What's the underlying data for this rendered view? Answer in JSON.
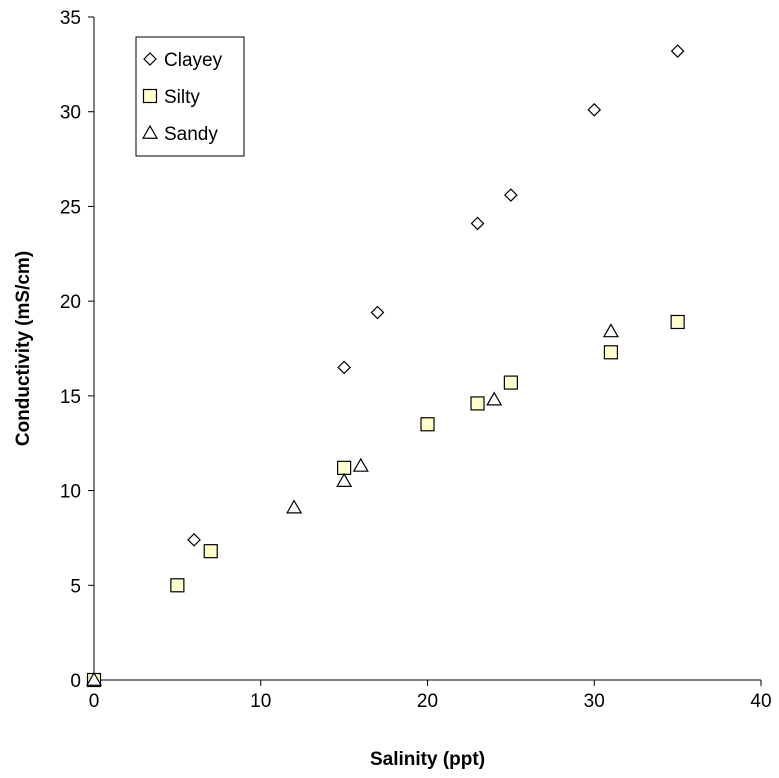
{
  "chart_data": {
    "type": "scatter",
    "xlabel": "Salinity (ppt)",
    "ylabel": "Conductivity (mS/cm)",
    "xlim": [
      0,
      40
    ],
    "ylim": [
      0,
      35
    ],
    "xticks": [
      0,
      10,
      20,
      30,
      40
    ],
    "yticks": [
      0,
      5,
      10,
      15,
      20,
      25,
      30,
      35
    ],
    "grid": false,
    "legend_position": "top-left",
    "series": [
      {
        "name": "Clayey",
        "marker": "diamond",
        "fill": "#ffffff",
        "points": [
          [
            0,
            0
          ],
          [
            6,
            7.4
          ],
          [
            15,
            16.5
          ],
          [
            17,
            19.4
          ],
          [
            23,
            24.1
          ],
          [
            25,
            25.6
          ],
          [
            30,
            30.1
          ],
          [
            35,
            33.2
          ]
        ]
      },
      {
        "name": "Silty",
        "marker": "square",
        "fill": "#ffffcc",
        "points": [
          [
            0,
            0
          ],
          [
            5,
            5.0
          ],
          [
            7,
            6.8
          ],
          [
            15,
            11.2
          ],
          [
            20,
            13.5
          ],
          [
            23,
            14.6
          ],
          [
            25,
            15.7
          ],
          [
            31,
            17.3
          ],
          [
            35,
            18.9
          ]
        ]
      },
      {
        "name": "Sandy",
        "marker": "triangle",
        "fill": "#ffffff",
        "points": [
          [
            0,
            0
          ],
          [
            12,
            9.1
          ],
          [
            15,
            10.5
          ],
          [
            16,
            11.3
          ],
          [
            24,
            14.8
          ],
          [
            31,
            18.4
          ]
        ]
      }
    ]
  }
}
